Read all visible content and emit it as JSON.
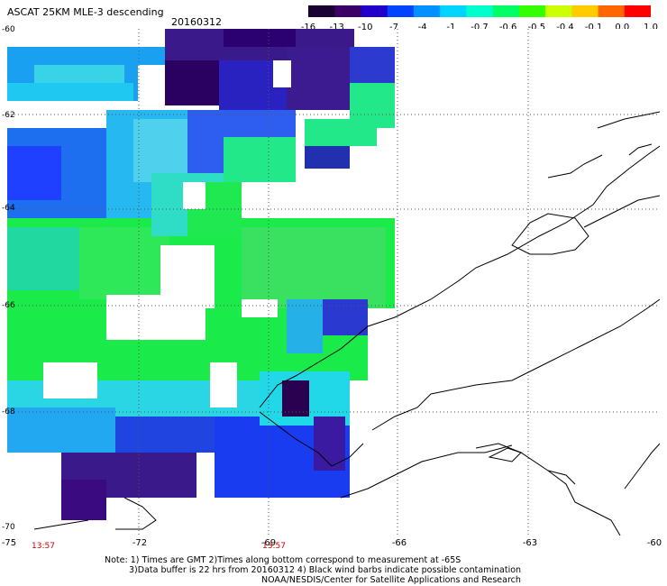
{
  "header": {
    "title": "ASCAT 25KM MLE-3 descending",
    "date": "20160312"
  },
  "colorbar": {
    "labels": [
      "-16",
      "-13",
      "-10",
      "-7",
      "-4",
      "-1",
      "-0.7",
      "-0.6",
      "-0.5",
      "-0.4",
      "-0.1",
      "0.0",
      "1.0"
    ],
    "colors": [
      "#1a0033",
      "#3a0066",
      "#2200cc",
      "#0044ff",
      "#0090ff",
      "#00d4ff",
      "#00ffcc",
      "#00ff66",
      "#33ff00",
      "#ccff00",
      "#ffcc00",
      "#ff6600",
      "#ff0000"
    ]
  },
  "map": {
    "lat_labels": [
      "-60",
      "-62",
      "-64",
      "-66",
      "-68",
      "-70"
    ],
    "lon_labels": [
      "-75",
      "-72",
      "-69",
      "-66",
      "-63",
      "-60"
    ],
    "times": [
      "13:57",
      "13:57"
    ]
  },
  "notes": {
    "line1": "Note: 1) Times are GMT 2)Times along bottom correspond to measurement at -65S",
    "line2": "3)Data buffer is 22 hrs from 20160312 4) Black wind barbs indicate possible contamination",
    "line3": "NOAA/NESDIS/Center for Satellite Applications and Research"
  }
}
